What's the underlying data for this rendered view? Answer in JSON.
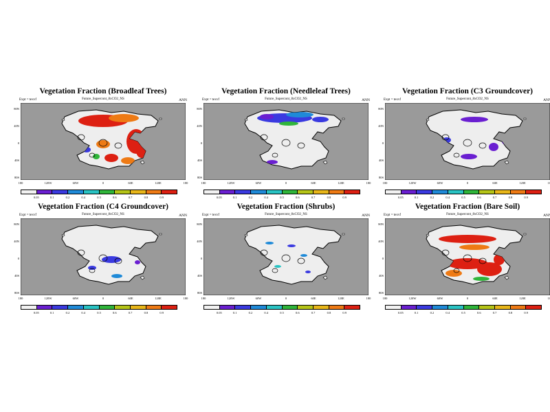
{
  "expt_label": "Expt = texvf",
  "subtitle": "Future_Supercont_8xCO2_NS",
  "season": "ANN",
  "lat_labels": [
    "80N",
    "40N",
    "0",
    "40S",
    "80S"
  ],
  "lon_labels": [
    "180",
    "120W",
    "60W",
    "0",
    "60E",
    "120E",
    "180"
  ],
  "colorbar": {
    "labels": [
      "0.05",
      "0.1",
      "0.2",
      "0.4",
      "0.5",
      "0.6",
      "0.7",
      "0.8",
      "0.9"
    ],
    "colors": [
      "#f2f2f2",
      "#6a1fd1",
      "#3a3ae0",
      "#1f8ad8",
      "#29c3c3",
      "#2fb53a",
      "#b5c417",
      "#e8b619",
      "#ee7a14",
      "#dd2012"
    ]
  },
  "colors": {
    "ocean": "#9a9a9a",
    "land": "#eeeeee",
    "coast": "#000000"
  },
  "panels": [
    {
      "title": "Vegetation Fraction (Broadleaf Trees)",
      "fill_levels": [
        "#dd2012",
        "#ee7a14",
        "#3a3ae0",
        "#2fb53a"
      ]
    },
    {
      "title": "Vegetation Fraction (Needleleaf Trees)",
      "fill_levels": [
        "#3a3ae0",
        "#1f8ad8",
        "#6a1fd1",
        "#2fb53a"
      ]
    },
    {
      "title": "Vegetation Fraction (C3 Groundcover)",
      "fill_levels": [
        "#6a1fd1",
        "#3a3ae0"
      ]
    },
    {
      "title": "Vegetation Fraction (C4 Groundcover)",
      "fill_levels": [
        "#3a3ae0",
        "#6a1fd1",
        "#1f8ad8"
      ]
    },
    {
      "title": "Vegetation Fraction (Shrubs)",
      "fill_levels": [
        "#1f8ad8",
        "#3a3ae0",
        "#29c3c3"
      ]
    },
    {
      "title": "Vegetation Fraction (Bare Soil)",
      "fill_levels": [
        "#dd2012",
        "#ee7a14",
        "#2fb53a"
      ]
    }
  ]
}
